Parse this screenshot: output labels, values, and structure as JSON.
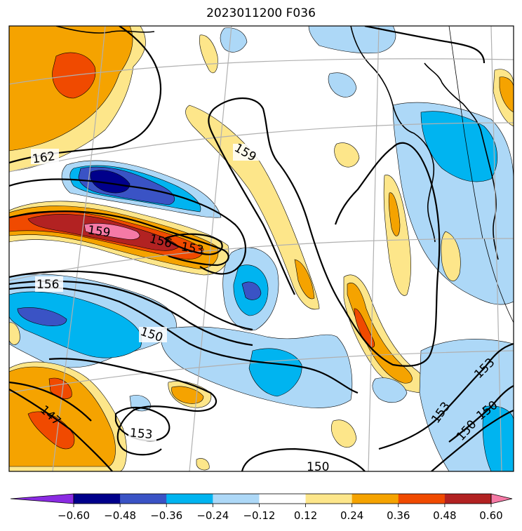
{
  "title": "2023011200 F036",
  "contour_labels": [
    {
      "text": "162",
      "name": "contour-label-162"
    },
    {
      "text": "159",
      "name": "contour-label-159-north"
    },
    {
      "text": "159",
      "name": "contour-label-159-west"
    },
    {
      "text": "156",
      "name": "contour-label-156-center"
    },
    {
      "text": "153",
      "name": "contour-label-153-center"
    },
    {
      "text": "156",
      "name": "contour-label-156-west"
    },
    {
      "text": "150",
      "name": "contour-label-150-center"
    },
    {
      "text": "147",
      "name": "contour-label-147"
    },
    {
      "text": "153",
      "name": "contour-label-153-south"
    },
    {
      "text": "150",
      "name": "contour-label-150-south"
    },
    {
      "text": "153",
      "name": "contour-label-153-southeast"
    },
    {
      "text": "150",
      "name": "contour-label-150-southeast"
    },
    {
      "text": "153",
      "name": "contour-label-153-east"
    },
    {
      "text": "150",
      "name": "contour-label-150-east"
    }
  ],
  "colorbar": {
    "ticks": [
      "−0.60",
      "−0.48",
      "−0.36",
      "−0.24",
      "−0.12",
      "0.12",
      "0.24",
      "0.36",
      "0.48",
      "0.60"
    ],
    "colors": [
      "#8a2be2",
      "#00008b",
      "#3a53c5",
      "#00b4f0",
      "#add8f7",
      "#ffffff",
      "#fde68a",
      "#f5a300",
      "#f04a00",
      "#b22222",
      "#f57aa6"
    ]
  },
  "palette": {
    "light_blue": "#add8f7",
    "blue": "#00b4f0",
    "mid_blue": "#3a53c5",
    "navy": "#00008b",
    "light_yellow": "#fde68a",
    "orange": "#f5a300",
    "red_orange": "#f04a00",
    "dark_red": "#b22222",
    "pink": "#f57aa6",
    "contour": "#000000",
    "grid": "#b0b0b0"
  }
}
